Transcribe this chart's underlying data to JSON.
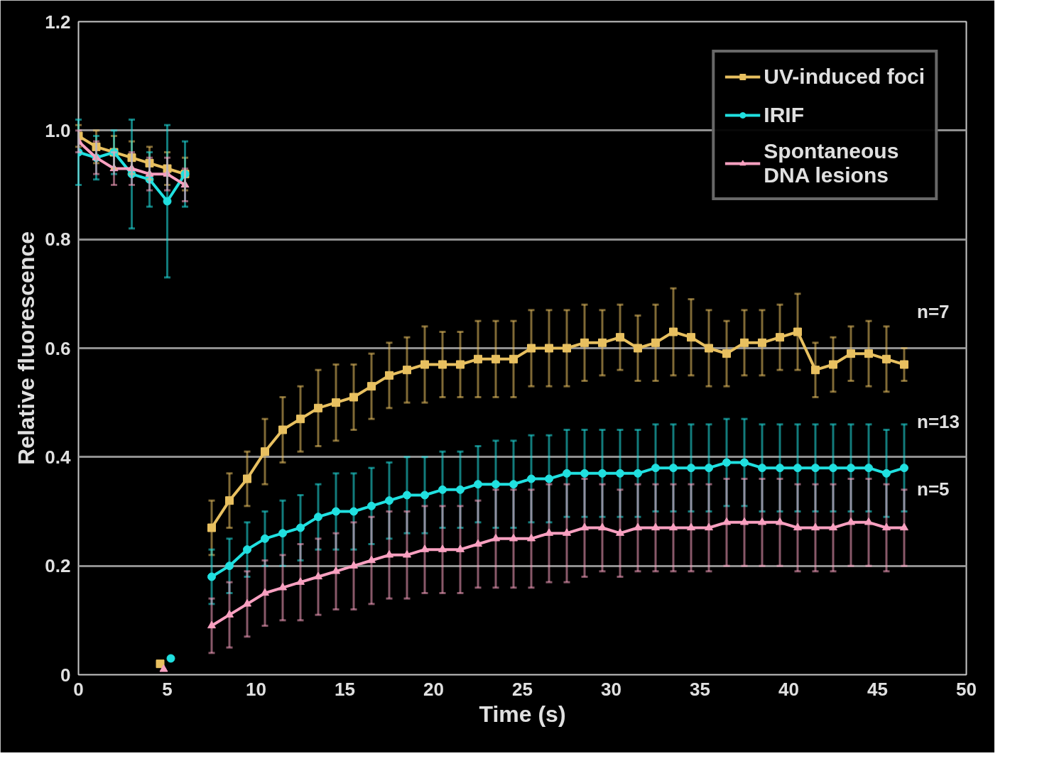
{
  "chart_data": {
    "type": "line",
    "xlabel": "Time (s)",
    "ylabel": "Relative fluorescence",
    "xlim": [
      0,
      50
    ],
    "xticks": [
      0,
      5,
      10,
      15,
      20,
      25,
      30,
      35,
      40,
      45,
      50
    ],
    "ylim": [
      0,
      1.2
    ],
    "yticks": [
      0,
      {
        "value": 0.2,
        "label": "0.2"
      },
      {
        "value": 0.4,
        "label": "0.4"
      },
      {
        "value": 0.6,
        "label": "0.6"
      },
      {
        "value": 0.8,
        "label": "0.8"
      },
      {
        "value": 1.0,
        "label": "1.0"
      },
      {
        "value": 1.2,
        "label": "1.2"
      }
    ],
    "grid": "y",
    "legend": "top right",
    "series": [
      {
        "name": "UV-induced foci",
        "color": "#e8c060",
        "marker": "square",
        "x": [
          0,
          1,
          2,
          3,
          4,
          5,
          6,
          6.8,
          7.5,
          8.5,
          9.5,
          10.5,
          11.5,
          12.5,
          13.5,
          14.5,
          15.5,
          16.5,
          17.5,
          18.5,
          19.5,
          20.5,
          21.5,
          22.5,
          23.5,
          24.5,
          25.5,
          26.5,
          27.5,
          28.5,
          29.5,
          30.5,
          31.5,
          32.5,
          33.5,
          34.5,
          35.5,
          36.5,
          37.5,
          38.5,
          39.5,
          40.5,
          41.5,
          42.5,
          43.5,
          44.5,
          45.5,
          46.5
        ],
        "values": [
          0.99,
          0.97,
          0.96,
          0.95,
          0.94,
          0.93,
          0.92,
          null,
          0.27,
          0.32,
          0.36,
          0.41,
          0.45,
          0.47,
          0.49,
          0.5,
          0.51,
          0.53,
          0.55,
          0.56,
          0.57,
          0.57,
          0.57,
          0.58,
          0.58,
          0.58,
          0.6,
          0.6,
          0.6,
          0.61,
          0.61,
          0.62,
          0.6,
          0.61,
          0.63,
          0.62,
          0.6,
          0.59,
          0.61,
          0.61,
          0.62,
          0.63,
          0.56,
          0.57,
          0.59,
          0.59,
          0.58,
          0.57
        ],
        "errors": [
          0.02,
          0.03,
          0.03,
          0.03,
          0.03,
          0.03,
          0.03,
          null,
          0.05,
          0.05,
          0.05,
          0.06,
          0.06,
          0.06,
          0.07,
          0.07,
          0.06,
          0.06,
          0.06,
          0.06,
          0.07,
          0.06,
          0.06,
          0.07,
          0.07,
          0.07,
          0.07,
          0.07,
          0.07,
          0.07,
          0.06,
          0.06,
          0.06,
          0.07,
          0.08,
          0.07,
          0.07,
          0.06,
          0.06,
          0.06,
          0.06,
          0.07,
          0.05,
          0.05,
          0.05,
          0.06,
          0.06,
          0.03
        ]
      },
      {
        "name": "IRIF",
        "color": "#20e0e0",
        "marker": "circle",
        "x": [
          0,
          1,
          2,
          3,
          4,
          5,
          6,
          6.8,
          7.5,
          8.5,
          9.5,
          10.5,
          11.5,
          12.5,
          13.5,
          14.5,
          15.5,
          16.5,
          17.5,
          18.5,
          19.5,
          20.5,
          21.5,
          22.5,
          23.5,
          24.5,
          25.5,
          26.5,
          27.5,
          28.5,
          29.5,
          30.5,
          31.5,
          32.5,
          33.5,
          34.5,
          35.5,
          36.5,
          37.5,
          38.5,
          39.5,
          40.5,
          41.5,
          42.5,
          43.5,
          44.5,
          45.5,
          46.5
        ],
        "values": [
          0.96,
          0.95,
          0.96,
          0.92,
          0.91,
          0.87,
          0.92,
          null,
          0.18,
          0.2,
          0.23,
          0.25,
          0.26,
          0.27,
          0.29,
          0.3,
          0.3,
          0.31,
          0.32,
          0.33,
          0.33,
          0.34,
          0.34,
          0.35,
          0.35,
          0.35,
          0.36,
          0.36,
          0.37,
          0.37,
          0.37,
          0.37,
          0.37,
          0.38,
          0.38,
          0.38,
          0.38,
          0.39,
          0.39,
          0.38,
          0.38,
          0.38,
          0.38,
          0.38,
          0.38,
          0.38,
          0.37,
          0.38
        ],
        "errors": [
          0.06,
          0.04,
          0.04,
          0.1,
          0.05,
          0.14,
          0.06,
          null,
          0.05,
          0.05,
          0.05,
          0.05,
          0.06,
          0.06,
          0.06,
          0.07,
          0.07,
          0.07,
          0.07,
          0.07,
          0.07,
          0.07,
          0.07,
          0.07,
          0.08,
          0.08,
          0.08,
          0.08,
          0.08,
          0.08,
          0.08,
          0.08,
          0.08,
          0.08,
          0.08,
          0.08,
          0.08,
          0.08,
          0.08,
          0.08,
          0.08,
          0.08,
          0.08,
          0.08,
          0.08,
          0.08,
          0.08,
          0.08
        ]
      },
      {
        "name": "Spontaneous\nDNA lesions",
        "color": "#f8a0c0",
        "marker": "triangle",
        "x": [
          0,
          1,
          2,
          3,
          4,
          5,
          6,
          6.8,
          7.5,
          8.5,
          9.5,
          10.5,
          11.5,
          12.5,
          13.5,
          14.5,
          15.5,
          16.5,
          17.5,
          18.5,
          19.5,
          20.5,
          21.5,
          22.5,
          23.5,
          24.5,
          25.5,
          26.5,
          27.5,
          28.5,
          29.5,
          30.5,
          31.5,
          32.5,
          33.5,
          34.5,
          35.5,
          36.5,
          37.5,
          38.5,
          39.5,
          40.5,
          41.5,
          42.5,
          43.5,
          44.5,
          45.5,
          46.5
        ],
        "values": [
          0.98,
          0.95,
          0.93,
          0.93,
          0.92,
          0.92,
          0.9,
          null,
          0.09,
          0.11,
          0.13,
          0.15,
          0.16,
          0.17,
          0.18,
          0.19,
          0.2,
          0.21,
          0.22,
          0.22,
          0.23,
          0.23,
          0.23,
          0.24,
          0.25,
          0.25,
          0.25,
          0.26,
          0.26,
          0.27,
          0.27,
          0.26,
          0.27,
          0.27,
          0.27,
          0.27,
          0.27,
          0.28,
          0.28,
          0.28,
          0.28,
          0.27,
          0.27,
          0.27,
          0.28,
          0.28,
          0.27,
          0.27
        ],
        "errors": [
          0.02,
          0.03,
          0.03,
          0.03,
          0.03,
          0.03,
          0.03,
          null,
          0.05,
          0.06,
          0.06,
          0.06,
          0.06,
          0.07,
          0.07,
          0.07,
          0.08,
          0.08,
          0.08,
          0.08,
          0.08,
          0.08,
          0.08,
          0.08,
          0.09,
          0.09,
          0.09,
          0.09,
          0.09,
          0.09,
          0.08,
          0.08,
          0.08,
          0.08,
          0.08,
          0.08,
          0.08,
          0.08,
          0.08,
          0.08,
          0.08,
          0.08,
          0.08,
          0.08,
          0.08,
          0.08,
          0.08,
          0.07
        ]
      },
      {
        "type": "scatter",
        "color": "#e8c060",
        "marker": "square",
        "x": [
          4.6
        ],
        "values": [
          0.02
        ]
      },
      {
        "type": "scatter",
        "color": "#20e0e0",
        "marker": "circle",
        "x": [
          5.2
        ],
        "values": [
          0.03
        ]
      },
      {
        "type": "scatter",
        "color": "#f8a0c0",
        "marker": "triangle",
        "x": [
          4.8
        ],
        "values": [
          0.01
        ]
      }
    ],
    "annotations": [
      "n=7",
      "n=13",
      "n=5"
    ]
  }
}
